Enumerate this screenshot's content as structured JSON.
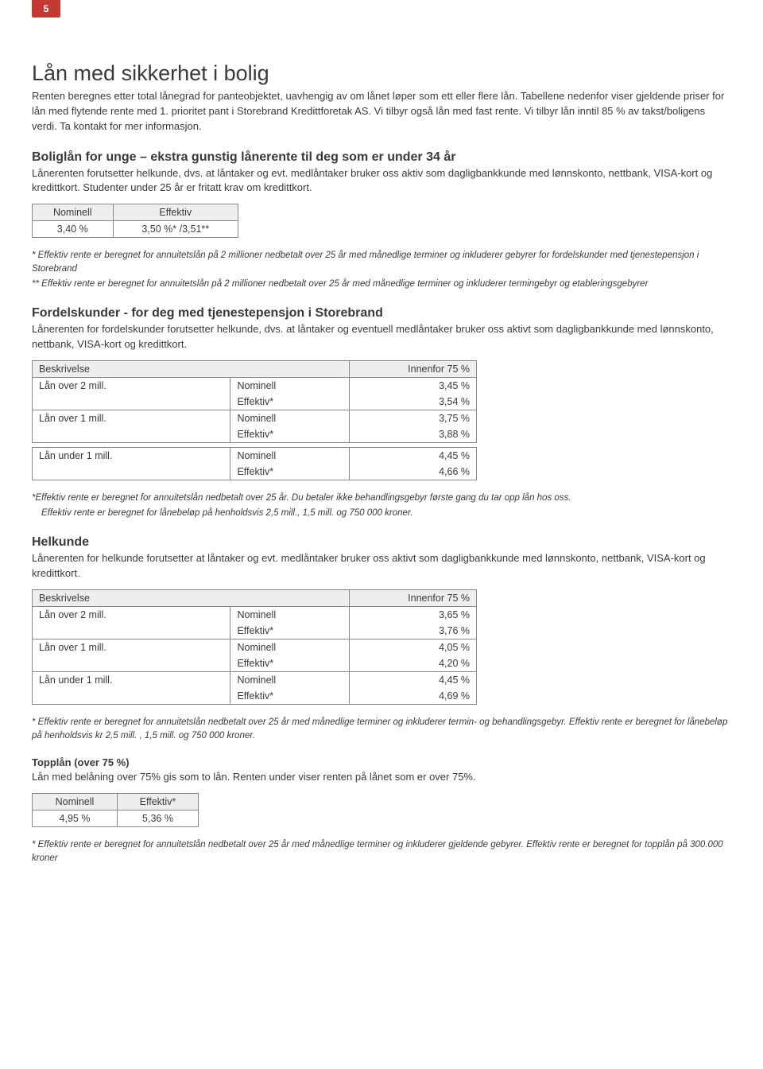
{
  "page_number": "5",
  "title": "Lån med sikkerhet i bolig",
  "intro": "Renten beregnes etter total lånegrad for panteobjektet, uavhengig av om lånet løper som ett eller flere lån. Tabellene nedenfor viser gjeldende priser for lån med flytende rente med 1. prioritet pant i Storebrand Kredittforetak AS. Vi tilbyr også lån med fast rente. Vi tilbyr lån inntil 85 % av takst/boligens verdi. Ta kontakt for mer informasjon.",
  "section_unge": {
    "heading": "Boliglån for unge – ekstra gunstig lånerente til deg som er under 34 år",
    "body": "Lånerenten forutsetter helkunde, dvs. at låntaker og evt. medlåntaker bruker oss aktiv som dagligbankkunde med lønnskonto, nettbank, VISA-kort og kredittkort. Studenter under 25 år er fritatt krav om kredittkort.",
    "table": {
      "headers": [
        "Nominell",
        "Effektiv"
      ],
      "row": [
        "3,40 %",
        "3,50 %* /3,51**"
      ]
    },
    "foot1": "* Effektiv rente er beregnet for annuitetslån på 2 millioner nedbetalt over 25 år med månedlige terminer og inkluderer gebyrer for fordelskunder med tjenestepensjon i Storebrand",
    "foot2": "** Effektiv rente er beregnet for annuitetslån på 2 millioner nedbetalt over 25 år med månedlige terminer og inkluderer termingebyr og etableringsgebyrer"
  },
  "section_fordel": {
    "heading": "Fordelskunder  - for deg med tjenestepensjon i Storebrand",
    "body": "Lånerenten for fordelskunder forutsetter helkunde, dvs. at låntaker og eventuell medlåntaker bruker oss aktivt som dagligbankkunde med lønnskonto, nettbank, VISA-kort og kredittkort.",
    "table": {
      "col1": "Beskrivelse",
      "col3": "Innenfor 75 %",
      "rows": [
        {
          "desc": "Lån over 2 mill.",
          "nom_lbl": "Nominell",
          "nom": "3,45 %",
          "eff_lbl": "Effektiv*",
          "eff": "3,54 %"
        },
        {
          "desc": "Lån over 1 mill.",
          "nom_lbl": "Nominell",
          "nom": "3,75 %",
          "eff_lbl": "Effektiv*",
          "eff": "3,88 %"
        },
        {
          "desc": "Lån under 1 mill.",
          "nom_lbl": "Nominell",
          "nom": "4,45 %",
          "eff_lbl": "Effektiv*",
          "eff": "4,66 %"
        }
      ]
    },
    "foot1": "*Effektiv rente er beregnet for annuitetslån nedbetalt over 25 år. Du betaler ikke behandlingsgebyr første gang du tar opp lån hos oss.",
    "foot2": "Effektiv rente er beregnet for lånebeløp på henholdsvis 2,5 mill., 1,5 mill. og 750 000 kroner."
  },
  "section_helkunde": {
    "heading": "Helkunde",
    "body": "Lånerenten for helkunde forutsetter at låntaker og evt. medlåntaker bruker oss aktivt som dagligbankkunde med lønnskonto, nettbank, VISA-kort og kredittkort.",
    "table": {
      "col1": "Beskrivelse",
      "col3": "Innenfor 75 %",
      "rows": [
        {
          "desc": "Lån over 2 mill.",
          "nom_lbl": "Nominell",
          "nom": "3,65 %",
          "eff_lbl": "Effektiv*",
          "eff": "3,76 %"
        },
        {
          "desc": "Lån over 1 mill.",
          "nom_lbl": "Nominell",
          "nom": "4,05 %",
          "eff_lbl": "Effektiv*",
          "eff": "4,20 %"
        },
        {
          "desc": "Lån under 1 mill.",
          "nom_lbl": "Nominell",
          "nom": "4,45 %",
          "eff_lbl": "Effektiv*",
          "eff": "4,69 %"
        }
      ]
    },
    "foot": "* Effektiv rente er beregnet for annuitetslån nedbetalt over 25 år med månedlige terminer og inkluderer termin- og behandlingsgebyr. Effektiv rente er beregnet for lånebeløp på henholdsvis kr 2,5 mill. , 1,5 mill. og 750 000 kroner."
  },
  "section_topp": {
    "heading": "Topplån (over 75 %)",
    "body": "Lån med belåning over 75% gis som to lån. Renten under viser renten på lånet som er over 75%.",
    "table": {
      "headers": [
        "Nominell",
        "Effektiv*"
      ],
      "row": [
        "4,95 %",
        "5,36 %"
      ]
    },
    "foot": "* Effektiv rente er beregnet for annuitetslån nedbetalt over 25 år med månedlige terminer og inkluderer gjeldende gebyrer. Effektiv rente er beregnet for topplån på 300.000 kroner"
  }
}
